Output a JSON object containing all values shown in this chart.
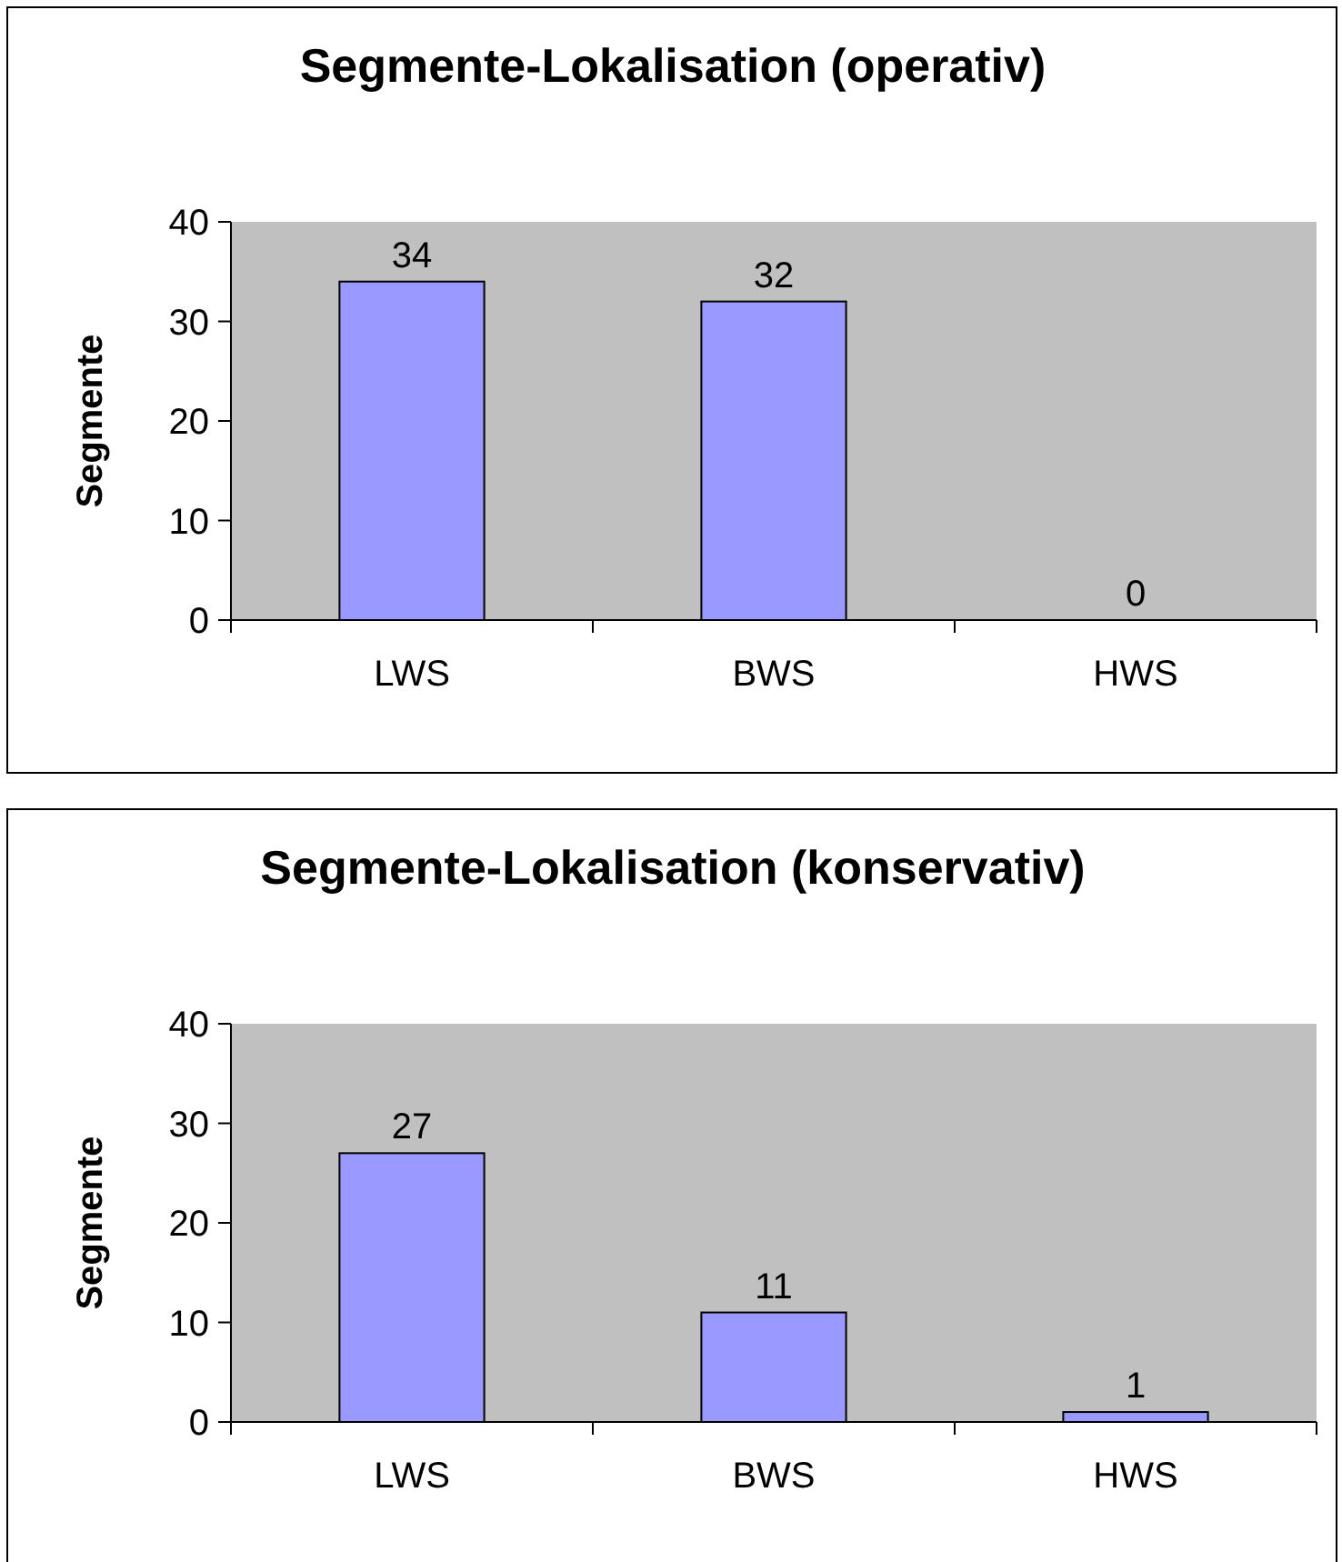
{
  "chart_data": [
    {
      "type": "bar",
      "title": "Segmente-Lokalisation (operativ)",
      "ylabel": "Segmente",
      "categories": [
        "LWS",
        "BWS",
        "HWS"
      ],
      "values": [
        34,
        32,
        0
      ],
      "color": "#9999ff",
      "ylim": [
        0,
        40
      ],
      "yticks": [
        0,
        10,
        20,
        30,
        40
      ],
      "data_labels": true
    },
    {
      "type": "bar",
      "title": "Segmente-Lokalisation (konservativ)",
      "ylabel": "Segmente",
      "categories": [
        "LWS",
        "BWS",
        "HWS"
      ],
      "values": [
        27,
        11,
        1
      ],
      "color": "#9999ff",
      "ylim": [
        0,
        40
      ],
      "yticks": [
        0,
        10,
        20,
        30,
        40
      ],
      "data_labels": true
    }
  ]
}
